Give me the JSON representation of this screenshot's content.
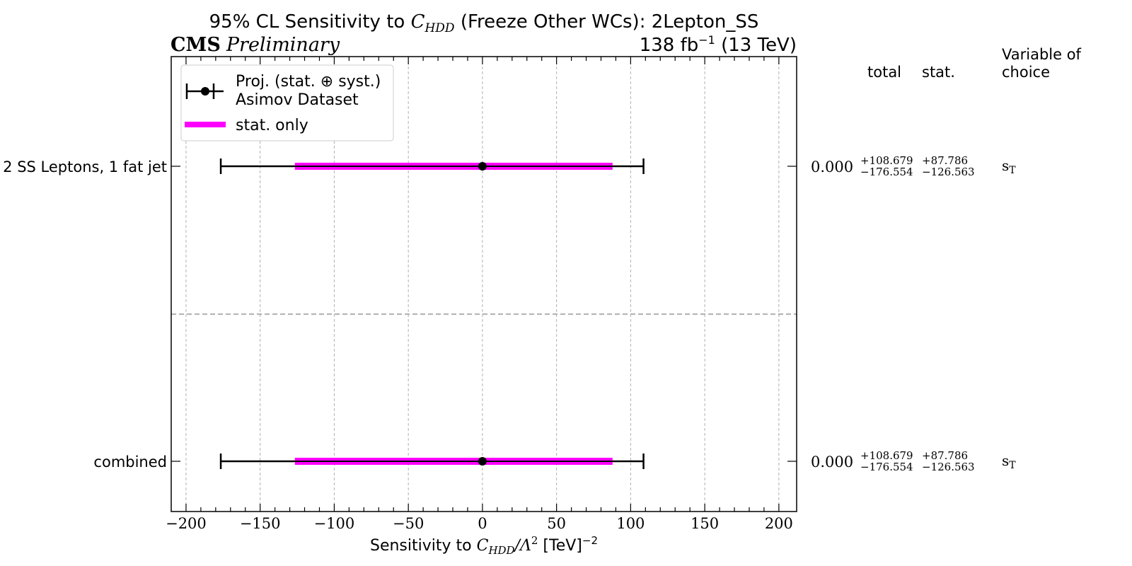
{
  "chart_data": {
    "type": "errorbar",
    "title_prefix": "95% CL Sensitivity to ",
    "title_symbol": "C",
    "title_symbol_sub": "HDD",
    "title_suffix": " (Freeze Other WCs): 2Lepton_SS",
    "experiment": "CMS",
    "status": "Preliminary",
    "lumi": "138 fb",
    "lumi_sup": "−1",
    "lumi_suffix": " (13 TeV)",
    "xlabel_prefix": "Sensitivity to ",
    "xlabel_symbol": "C",
    "xlabel_symbol_sub": "HDD",
    "xlabel_mid": "/Λ",
    "xlabel_mid_sup": "2",
    "xlabel_unit": " [TeV]",
    "xlabel_unit_sup": "−2",
    "xlim": [
      -210,
      212
    ],
    "xticks": [
      -200,
      -150,
      -100,
      -50,
      0,
      50,
      100,
      150,
      200
    ],
    "xtick_labels": [
      "−200",
      "−150",
      "−100",
      "−50",
      "0",
      "50",
      "100",
      "150",
      "200"
    ],
    "grid": true,
    "legend": {
      "position": "top-left",
      "entries": [
        {
          "label_line1": "Proj. (stat. ⊕ syst.)",
          "label_line2": "Asimov Dataset",
          "color": "#000000",
          "marker": "errorbar"
        },
        {
          "label": "stat. only",
          "color": "#ff00ff",
          "marker": "band"
        }
      ]
    },
    "columns": {
      "total": "total",
      "stat": "stat.",
      "variable_line1": "Variable of",
      "variable_line2": "choice"
    },
    "rows": [
      {
        "label": "2 SS Leptons, 1 fat jet",
        "center": 0.0,
        "center_label": "0.000",
        "total_up": 108.679,
        "total_down": -176.554,
        "stat_up": 87.786,
        "stat_down": -126.563,
        "total_up_label": "+108.679",
        "total_down_label": "−176.554",
        "stat_up_label": "+87.786",
        "stat_down_label": "−126.563",
        "variable": "s",
        "variable_sub": "T"
      },
      {
        "label": "combined",
        "center": 0.0,
        "center_label": "0.000",
        "total_up": 108.679,
        "total_down": -176.554,
        "stat_up": 87.786,
        "stat_down": -126.563,
        "total_up_label": "+108.679",
        "total_down_label": "−176.554",
        "stat_up_label": "+87.786",
        "stat_down_label": "−126.563",
        "variable": "s",
        "variable_sub": "T"
      }
    ],
    "colors": {
      "total": "#000000",
      "stat": "#ff00ff",
      "grid": "#b0b0b0",
      "separator": "#999999"
    }
  }
}
